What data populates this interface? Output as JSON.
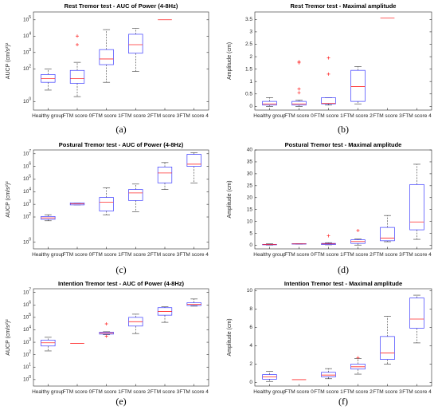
{
  "chart_data": [
    {
      "type": "box",
      "caption": "(a)",
      "title": "Rest Tremor test - AUC of Power (4-8Hz)",
      "ylabel": "AUCP (cm/s²)²",
      "yscale": "log",
      "ylim": [
        0.3,
        300000
      ],
      "yticks": [
        {
          "v": 1,
          "label": "10^0"
        },
        {
          "v": 100,
          "label": "10^2"
        },
        {
          "v": 1000,
          "label": "10^3"
        },
        {
          "v": 10000,
          "label": "10^4"
        },
        {
          "v": 100000,
          "label": "10^5"
        }
      ],
      "yticklabels": [
        "10^0",
        "10^2",
        "10^3",
        "10^4",
        "10^5"
      ],
      "categories": [
        "Healthy group",
        "FTM score 0",
        "FTM score 1",
        "FTM score 2",
        "FTM score 3",
        "FTM score 4"
      ],
      "boxes": [
        {
          "min": 5,
          "q1": 15,
          "median": 25,
          "q3": 45,
          "max": 100,
          "outliers": []
        },
        {
          "min": 2,
          "q1": 13,
          "median": 25,
          "q3": 80,
          "max": 250,
          "outliers": [
            3000,
            10000
          ]
        },
        {
          "min": 15,
          "q1": 180,
          "median": 400,
          "q3": 1500,
          "max": 25000,
          "outliers": []
        },
        {
          "min": 70,
          "q1": 900,
          "median": 3000,
          "q3": 13000,
          "max": 30000,
          "outliers": []
        },
        {
          "min": 100000,
          "q1": 100000,
          "median": 100000,
          "q3": 100000,
          "max": 100000,
          "outliers": []
        },
        null
      ]
    },
    {
      "type": "box",
      "caption": "(b)",
      "title": "Rest Tremor test - Maximal amplitude",
      "ylabel": "Amplitude (cm)",
      "yscale": "linear",
      "ylim": [
        -0.15,
        3.8
      ],
      "yticks": [
        {
          "v": 0,
          "label": "0"
        },
        {
          "v": 0.5,
          "label": "0.5"
        },
        {
          "v": 1,
          "label": "1"
        },
        {
          "v": 1.5,
          "label": "1.5"
        },
        {
          "v": 2,
          "label": "2"
        },
        {
          "v": 2.5,
          "label": "2.5"
        },
        {
          "v": 3,
          "label": "3"
        },
        {
          "v": 3.5,
          "label": "3.5"
        }
      ],
      "yticklabels": [
        "0",
        "0.5",
        "1",
        "1.5",
        "2",
        "2.5",
        "3",
        "3.5"
      ],
      "categories": [
        "Healthy group",
        "FTM score 0",
        "FTM score 1",
        "FTM score 2",
        "FTM score 3",
        "FTM score 4"
      ],
      "boxes": [
        {
          "min": 0,
          "q1": 0.05,
          "median": 0.1,
          "q3": 0.2,
          "max": 0.35,
          "outliers": []
        },
        {
          "min": 0,
          "q1": 0.05,
          "median": 0.1,
          "q3": 0.2,
          "max": 0.25,
          "outliers": [
            0.55,
            0.7,
            1.75,
            1.8
          ]
        },
        {
          "min": 0.05,
          "q1": 0.1,
          "median": 0.12,
          "q3": 0.35,
          "max": 0.35,
          "outliers": [
            1.3,
            1.95
          ]
        },
        {
          "min": 0.1,
          "q1": 0.2,
          "median": 0.8,
          "q3": 1.45,
          "max": 1.6,
          "outliers": []
        },
        {
          "min": 3.55,
          "q1": 3.55,
          "median": 3.55,
          "q3": 3.55,
          "max": 3.55,
          "outliers": []
        },
        null
      ]
    },
    {
      "type": "box",
      "caption": "(c)",
      "title": "Postural Tremor test - AUC of Power (4-8Hz)",
      "ylabel": "AUCP (cm/s²)²",
      "yscale": "log",
      "ylim": [
        0.3,
        20000000
      ],
      "yticks": [
        {
          "v": 1,
          "label": "10^0"
        },
        {
          "v": 100,
          "label": "10^2"
        },
        {
          "v": 1000,
          "label": "10^3"
        },
        {
          "v": 10000,
          "label": "10^4"
        },
        {
          "v": 100000,
          "label": "10^5"
        },
        {
          "v": 1000000,
          "label": "10^6"
        },
        {
          "v": 10000000,
          "label": "10^7"
        }
      ],
      "yticklabels": [
        "10^0",
        "10^2",
        "10^3",
        "10^4",
        "10^5",
        "10^6",
        "10^7"
      ],
      "categories": [
        "Healthy group",
        "FTM score 0",
        "FTM score 1",
        "FTM score 2",
        "FTM score 3",
        "FTM score 4"
      ],
      "boxes": [
        {
          "min": 50,
          "q1": 65,
          "median": 85,
          "q3": 110,
          "max": 150,
          "outliers": []
        },
        {
          "min": 900,
          "q1": 900,
          "median": 1100,
          "q3": 1300,
          "max": 1300,
          "outliers": []
        },
        {
          "min": 150,
          "q1": 300,
          "median": 1500,
          "q3": 3500,
          "max": 20000,
          "outliers": []
        },
        {
          "min": 250,
          "q1": 2000,
          "median": 8000,
          "q3": 15000,
          "max": 40000,
          "outliers": []
        },
        {
          "min": 15000,
          "q1": 50000,
          "median": 300000,
          "q3": 900000,
          "max": 2000000,
          "outliers": []
        },
        {
          "min": 50000,
          "q1": 1000000,
          "median": 1500000,
          "q3": 9000000,
          "max": 12000000,
          "outliers": []
        }
      ]
    },
    {
      "type": "box",
      "caption": "(d)",
      "title": "Postural Tremor test - Maximal amplitude",
      "ylabel": "Amplitude (cm)",
      "yscale": "linear",
      "ylim": [
        -1.5,
        40
      ],
      "yticks": [
        {
          "v": 0,
          "label": "0"
        },
        {
          "v": 5,
          "label": "5"
        },
        {
          "v": 10,
          "label": "10"
        },
        {
          "v": 15,
          "label": "15"
        },
        {
          "v": 20,
          "label": "20"
        },
        {
          "v": 25,
          "label": "25"
        },
        {
          "v": 30,
          "label": "30"
        },
        {
          "v": 35,
          "label": "35"
        },
        {
          "v": 40,
          "label": "40"
        }
      ],
      "yticklabels": [
        "0",
        "5",
        "10",
        "15",
        "20",
        "25",
        "30",
        "35",
        "40"
      ],
      "categories": [
        "Healthy group",
        "FTM score 0",
        "FTM score 1",
        "FTM score 2",
        "FTM score 3",
        "FTM score 4"
      ],
      "boxes": [
        {
          "min": 0.1,
          "q1": 0.2,
          "median": 0.3,
          "q3": 0.4,
          "max": 0.6,
          "outliers": []
        },
        {
          "min": 0.5,
          "q1": 0.5,
          "median": 0.6,
          "q3": 0.7,
          "max": 0.7,
          "outliers": []
        },
        {
          "min": 0.2,
          "q1": 0.3,
          "median": 0.6,
          "q3": 0.8,
          "max": 1.1,
          "outliers": [
            4.0
          ]
        },
        {
          "min": 0.1,
          "q1": 0.8,
          "median": 1.6,
          "q3": 2.3,
          "max": 2.6,
          "outliers": [
            6.2
          ]
        },
        {
          "min": 1.5,
          "q1": 1.9,
          "median": 3.0,
          "q3": 7.5,
          "max": 12.5,
          "outliers": []
        },
        {
          "min": 2.5,
          "q1": 6.5,
          "median": 9.8,
          "q3": 25.5,
          "max": 34.0,
          "outliers": []
        }
      ]
    },
    {
      "type": "box",
      "caption": "(e)",
      "title": "Intention Tremor test - AUC of Power (4-8Hz)",
      "ylabel": "AUCP (cm/s²)²",
      "yscale": "log",
      "ylim": [
        0.3,
        20000000
      ],
      "yticks": [
        {
          "v": 1,
          "label": "10^0"
        },
        {
          "v": 10,
          "label": "10^1"
        },
        {
          "v": 100,
          "label": "10^2"
        },
        {
          "v": 1000,
          "label": "10^3"
        },
        {
          "v": 10000,
          "label": "10^4"
        },
        {
          "v": 100000,
          "label": "10^5"
        },
        {
          "v": 1000000,
          "label": "10^6"
        },
        {
          "v": 10000000,
          "label": "10^7"
        }
      ],
      "yticklabels": [
        "10^0",
        "10^1",
        "10^2",
        "10^3",
        "10^4",
        "10^5",
        "10^6",
        "10^7"
      ],
      "categories": [
        "Healthy group",
        "FTM score 0",
        "FTM score 1",
        "FTM score 2",
        "FTM score 3",
        "FTM score 4"
      ],
      "boxes": [
        {
          "min": 200,
          "q1": 500,
          "median": 900,
          "q3": 1500,
          "max": 2500,
          "outliers": []
        },
        {
          "min": 800,
          "q1": 800,
          "median": 800,
          "q3": 800,
          "max": 800,
          "outliers": []
        },
        {
          "min": 4000,
          "q1": 4500,
          "median": 5500,
          "q3": 6500,
          "max": 7000,
          "outliers": [
            3000,
            30000
          ]
        },
        {
          "min": 5000,
          "q1": 20000,
          "median": 45000,
          "q3": 100000,
          "max": 180000,
          "outliers": []
        },
        {
          "min": 40000,
          "q1": 150000,
          "median": 300000,
          "q3": 600000,
          "max": 700000,
          "outliers": []
        },
        {
          "min": 800000,
          "q1": 900000,
          "median": 1100000,
          "q3": 1500000,
          "max": 3000000,
          "outliers": []
        }
      ]
    },
    {
      "type": "box",
      "caption": "(f)",
      "title": "Intention Tremor test - Maximal amplitude",
      "ylabel": "Amplitude (cm)",
      "yscale": "linear",
      "ylim": [
        -0.4,
        10.2
      ],
      "yticks": [
        {
          "v": 0,
          "label": "0"
        },
        {
          "v": 2,
          "label": "2"
        },
        {
          "v": 4,
          "label": "4"
        },
        {
          "v": 6,
          "label": "6"
        },
        {
          "v": 8,
          "label": "8"
        },
        {
          "v": 10,
          "label": "10"
        }
      ],
      "yticklabels": [
        "0",
        "2",
        "4",
        "6",
        "8",
        "10"
      ],
      "categories": [
        "Healthy group",
        "FTM score 0",
        "FTM score 1",
        "FTM score 2",
        "FTM score 3",
        "FTM score 4"
      ],
      "boxes": [
        {
          "min": 0.1,
          "q1": 0.35,
          "median": 0.6,
          "q3": 0.85,
          "max": 1.2,
          "outliers": []
        },
        {
          "min": 0.3,
          "q1": 0.3,
          "median": 0.3,
          "q3": 0.3,
          "max": 0.3,
          "outliers": []
        },
        {
          "min": 0.4,
          "q1": 0.6,
          "median": 0.8,
          "q3": 1.1,
          "max": 1.5,
          "outliers": []
        },
        {
          "min": 0.9,
          "q1": 1.45,
          "median": 1.7,
          "q3": 2.0,
          "max": 2.6,
          "outliers": [
            2.7
          ]
        },
        {
          "min": 2.0,
          "q1": 2.5,
          "median": 3.2,
          "q3": 5.0,
          "max": 7.2,
          "outliers": []
        },
        {
          "min": 4.3,
          "q1": 5.9,
          "median": 6.9,
          "q3": 9.2,
          "max": 9.5,
          "outliers": []
        }
      ]
    }
  ]
}
